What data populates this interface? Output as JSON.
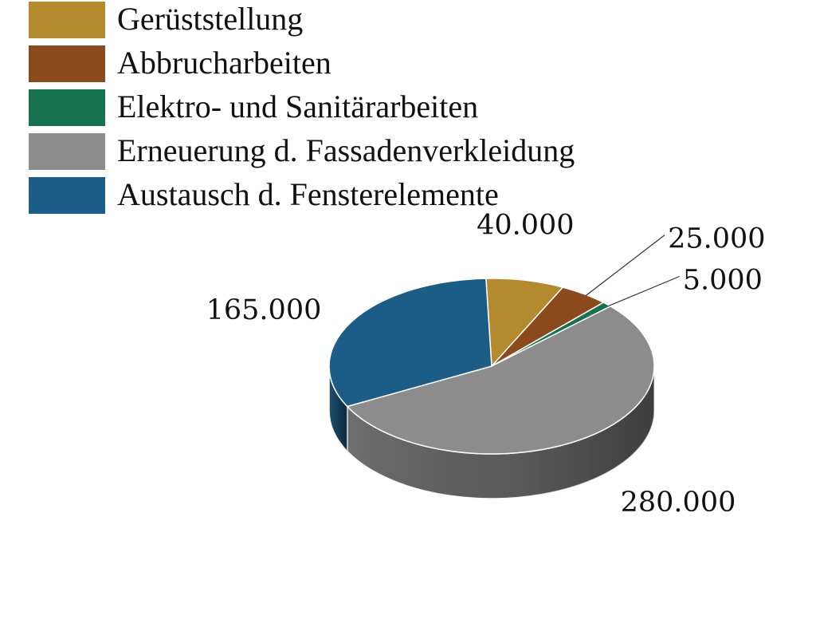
{
  "chart_data": {
    "type": "pie",
    "categories": [
      "Gerüststellung",
      "Abbrucharbeiten",
      "Elektro- und Sanitärarbeiten",
      "Erneuerung d. Fassadenverkleidung",
      "Austausch d. Fensterelemente"
    ],
    "values": [
      40000,
      25000,
      5000,
      280000,
      165000
    ],
    "data_labels": [
      "40.000",
      "25.000",
      "5.000",
      "280.000",
      "165.000"
    ],
    "colors": [
      "#b38a2e",
      "#8a4a1c",
      "#17724f",
      "#8c8c8c",
      "#1b5d87"
    ],
    "style": "3d",
    "legend_position": "top-left"
  }
}
